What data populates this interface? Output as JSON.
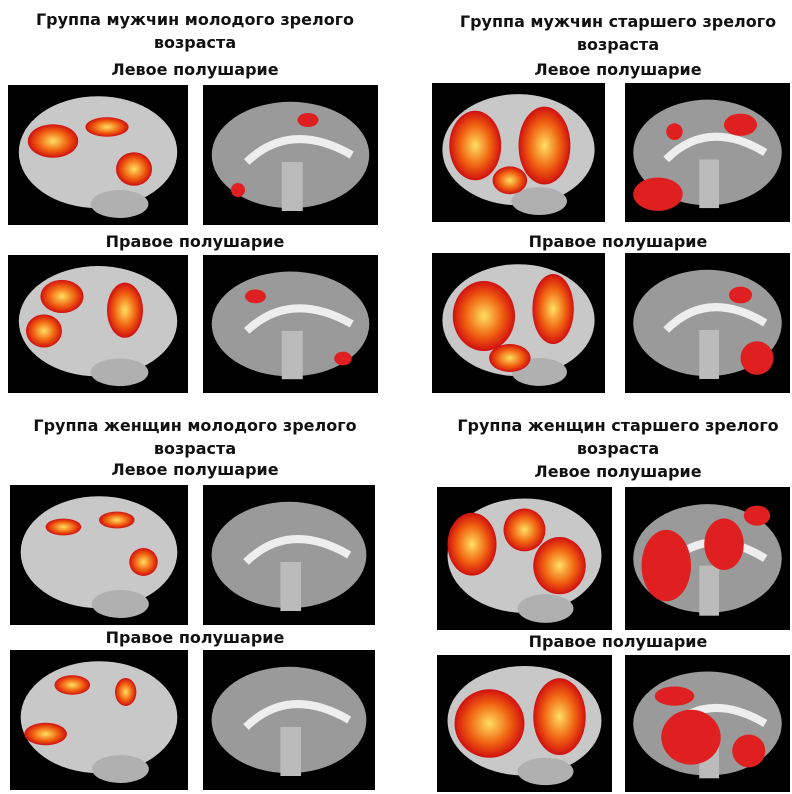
{
  "panels": [
    {
      "title": "Группа мужчин молодого зрелого возраста",
      "left": "Левое полушарие",
      "right": "Правое полушарие"
    },
    {
      "title": "Группа мужчин старшего зрелого возраста",
      "left": "Левое полушарие",
      "right": "Правое полушарие"
    },
    {
      "title": "Группа женщин молодого зрелого возраста",
      "left": "Левое полушарие",
      "right": "Правое полушарие"
    },
    {
      "title": "Группа женщин старшего зрелого возраста",
      "left": "Левое полушарие",
      "right": "Правое полушарие"
    }
  ]
}
